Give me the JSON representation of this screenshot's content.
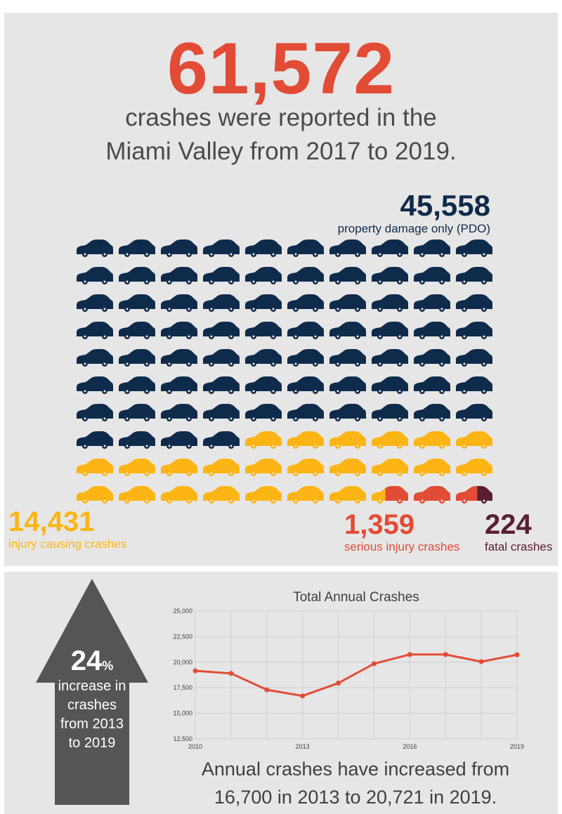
{
  "summary": {
    "total_number": "61,572",
    "subtitle_line_1": "crashes were reported in the",
    "subtitle_line_2": "Miami Valley from 2017 to 2019."
  },
  "categories": {
    "pdo": {
      "number": "45,558",
      "label": "property damage only (PDO)",
      "color": "#0f2b4c"
    },
    "injury": {
      "number": "14,431",
      "label": "injury causing crashes",
      "color": "#fdb515"
    },
    "serious": {
      "number": "1,359",
      "label": "serious injury crashes",
      "color": "#e24c36"
    },
    "fatal": {
      "number": "224",
      "label": "fatal crashes",
      "color": "#5a1f2e"
    }
  },
  "car_grid": {
    "columns": 10,
    "rows": 10,
    "counts": {
      "pdo": 74,
      "injury": 23.4,
      "serious": 2.2,
      "fatal": 0.4
    }
  },
  "arrow": {
    "percent": "24",
    "percent_sign": "%",
    "line_1": "increase in",
    "line_2": "crashes",
    "line_3": "from 2013",
    "line_4": "to 2019",
    "color": "#555555"
  },
  "chart_data": {
    "type": "line",
    "title": "Total Annual Crashes",
    "xlabel": "",
    "ylabel": "",
    "x": [
      2010,
      2011,
      2012,
      2013,
      2014,
      2015,
      2016,
      2017,
      2018,
      2019
    ],
    "series": [
      {
        "name": "Total Annual Crashes",
        "values": [
          19150,
          18900,
          17300,
          16700,
          17950,
          19850,
          20750,
          20750,
          20050,
          20721
        ],
        "color": "#e24c36"
      }
    ],
    "ylim": [
      12500,
      25000
    ],
    "yticks": [
      12500,
      15000,
      17500,
      20000,
      22500,
      25000
    ],
    "ytick_labels": [
      "12,500",
      "15,000",
      "17,500",
      "20,000",
      "22,500",
      "25,000"
    ],
    "xticks": [
      2010,
      2013,
      2016,
      2019
    ],
    "xtick_labels": [
      "2010",
      "2013",
      "2016",
      "2019"
    ],
    "grid": true
  },
  "caption": {
    "line_1": "Annual crashes have increased from",
    "line_2": "16,700 in 2013 to 20,721 in 2019."
  }
}
